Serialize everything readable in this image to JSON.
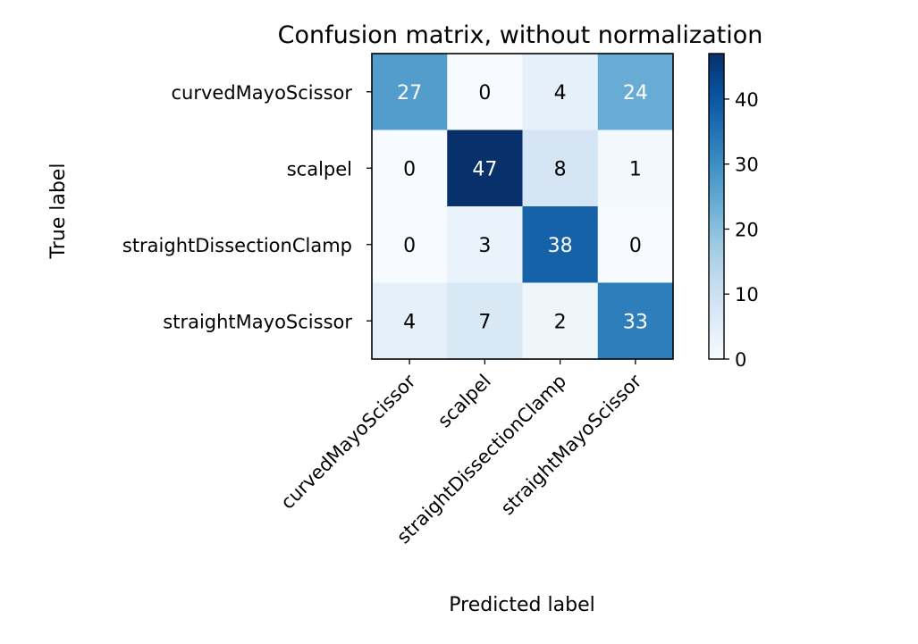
{
  "chart_data": {
    "type": "heatmap",
    "title": "Confusion matrix, without normalization",
    "xlabel": "Predicted label",
    "ylabel": "True label",
    "x_categories": [
      "curvedMayoScissor",
      "scalpel",
      "straightDissectionClamp",
      "straightMayoScissor"
    ],
    "y_categories": [
      "curvedMayoScissor",
      "scalpel",
      "straightDissectionClamp",
      "straightMayoScissor"
    ],
    "values": [
      [
        27,
        0,
        4,
        24
      ],
      [
        0,
        47,
        8,
        1
      ],
      [
        0,
        3,
        38,
        0
      ],
      [
        4,
        7,
        2,
        33
      ]
    ],
    "colormap": "Blues",
    "colormap_stops": [
      "#f7fbff",
      "#deebf7",
      "#c6dbef",
      "#9ecae1",
      "#6baed6",
      "#4292c6",
      "#2171b5",
      "#08519c",
      "#08306b"
    ],
    "value_range": [
      0,
      47
    ],
    "colorbar_ticks": [
      0,
      10,
      20,
      30,
      40
    ],
    "grid": false
  }
}
